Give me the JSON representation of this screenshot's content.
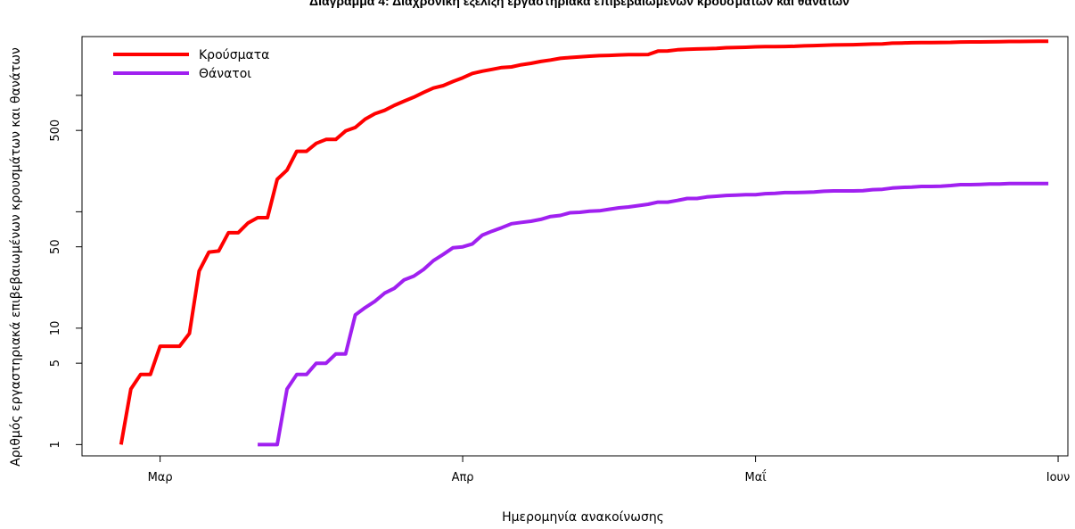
{
  "chart_data": {
    "type": "line",
    "title": "Διάγραμμα 4: Διαχρονική εξέλιξη εργαστηριακά επιβεβαιωμένων κρουσμάτων και θανάτων",
    "xlabel": "Ημερομηνία ανακοίνωσης",
    "ylabel": "Αριθμός εργαστηριακά επιβεβαιωμένων κρουσμάτων και θανάτων",
    "y_scale": "log",
    "ylim": [
      0.8,
      3200
    ],
    "y_ticks": [
      1,
      5,
      10,
      50,
      100,
      500,
      1000
    ],
    "y_tick_labels": [
      "1",
      "5",
      "10",
      "50",
      "",
      "500",
      ""
    ],
    "xlim": [
      "2020-02-22",
      "2020-06-02"
    ],
    "x_ticks": [
      {
        "date": "2020-03-01",
        "label": "Μαρ"
      },
      {
        "date": "2020-04-01",
        "label": "Απρ"
      },
      {
        "date": "2020-05-01",
        "label": "Μαΐ"
      },
      {
        "date": "2020-06-01",
        "label": "Ιουν"
      }
    ],
    "legend_position": "top-left",
    "grid": false,
    "series": [
      {
        "name": "Κρούσματα",
        "color": "#ff0000",
        "points": [
          [
            "2020-02-26",
            1
          ],
          [
            "2020-02-27",
            3
          ],
          [
            "2020-02-28",
            4
          ],
          [
            "2020-02-29",
            4
          ],
          [
            "2020-03-01",
            7
          ],
          [
            "2020-03-02",
            7
          ],
          [
            "2020-03-03",
            7
          ],
          [
            "2020-03-04",
            9
          ],
          [
            "2020-03-05",
            31
          ],
          [
            "2020-03-06",
            45
          ],
          [
            "2020-03-07",
            46
          ],
          [
            "2020-03-08",
            66
          ],
          [
            "2020-03-09",
            66
          ],
          [
            "2020-03-10",
            80
          ],
          [
            "2020-03-11",
            89
          ],
          [
            "2020-03-12",
            89
          ],
          [
            "2020-03-13",
            190
          ],
          [
            "2020-03-14",
            228
          ],
          [
            "2020-03-15",
            331
          ],
          [
            "2020-03-16",
            331
          ],
          [
            "2020-03-17",
            387
          ],
          [
            "2020-03-18",
            418
          ],
          [
            "2020-03-19",
            418
          ],
          [
            "2020-03-20",
            495
          ],
          [
            "2020-03-21",
            530
          ],
          [
            "2020-03-22",
            624
          ],
          [
            "2020-03-23",
            695
          ],
          [
            "2020-03-24",
            743
          ],
          [
            "2020-03-25",
            821
          ],
          [
            "2020-03-26",
            892
          ],
          [
            "2020-03-27",
            966
          ],
          [
            "2020-03-28",
            1061
          ],
          [
            "2020-03-29",
            1156
          ],
          [
            "2020-03-30",
            1212
          ],
          [
            "2020-03-31",
            1314
          ],
          [
            "2020-04-01",
            1415
          ],
          [
            "2020-04-02",
            1544
          ],
          [
            "2020-04-03",
            1613
          ],
          [
            "2020-04-04",
            1673
          ],
          [
            "2020-04-05",
            1735
          ],
          [
            "2020-04-06",
            1755
          ],
          [
            "2020-04-07",
            1832
          ],
          [
            "2020-04-08",
            1884
          ],
          [
            "2020-04-09",
            1955
          ],
          [
            "2020-04-10",
            2011
          ],
          [
            "2020-04-11",
            2081
          ],
          [
            "2020-04-12",
            2114
          ],
          [
            "2020-04-13",
            2145
          ],
          [
            "2020-04-14",
            2170
          ],
          [
            "2020-04-15",
            2192
          ],
          [
            "2020-04-16",
            2207
          ],
          [
            "2020-04-17",
            2224
          ],
          [
            "2020-04-18",
            2235
          ],
          [
            "2020-04-19",
            2235
          ],
          [
            "2020-04-20",
            2245
          ],
          [
            "2020-04-21",
            2401
          ],
          [
            "2020-04-22",
            2408
          ],
          [
            "2020-04-23",
            2463
          ],
          [
            "2020-04-24",
            2490
          ],
          [
            "2020-04-25",
            2506
          ],
          [
            "2020-04-26",
            2517
          ],
          [
            "2020-04-27",
            2534
          ],
          [
            "2020-04-28",
            2566
          ],
          [
            "2020-04-29",
            2576
          ],
          [
            "2020-04-30",
            2591
          ],
          [
            "2020-05-01",
            2612
          ],
          [
            "2020-05-02",
            2620
          ],
          [
            "2020-05-03",
            2626
          ],
          [
            "2020-05-04",
            2632
          ],
          [
            "2020-05-05",
            2642
          ],
          [
            "2020-05-06",
            2663
          ],
          [
            "2020-05-07",
            2678
          ],
          [
            "2020-05-08",
            2691
          ],
          [
            "2020-05-09",
            2710
          ],
          [
            "2020-05-10",
            2716
          ],
          [
            "2020-05-11",
            2726
          ],
          [
            "2020-05-12",
            2744
          ],
          [
            "2020-05-13",
            2760
          ],
          [
            "2020-05-14",
            2770
          ],
          [
            "2020-05-15",
            2810
          ],
          [
            "2020-05-16",
            2819
          ],
          [
            "2020-05-17",
            2834
          ],
          [
            "2020-05-18",
            2836
          ],
          [
            "2020-05-19",
            2840
          ],
          [
            "2020-05-20",
            2850
          ],
          [
            "2020-05-21",
            2853
          ],
          [
            "2020-05-22",
            2873
          ],
          [
            "2020-05-23",
            2876
          ],
          [
            "2020-05-24",
            2878
          ],
          [
            "2020-05-25",
            2882
          ],
          [
            "2020-05-26",
            2892
          ],
          [
            "2020-05-27",
            2903
          ],
          [
            "2020-05-28",
            2906
          ],
          [
            "2020-05-29",
            2909
          ],
          [
            "2020-05-30",
            2915
          ],
          [
            "2020-05-31",
            2917
          ]
        ]
      },
      {
        "name": "Θάνατοι",
        "color": "#a020f0",
        "points": [
          [
            "2020-03-11",
            1
          ],
          [
            "2020-03-12",
            1
          ],
          [
            "2020-03-13",
            1
          ],
          [
            "2020-03-14",
            3
          ],
          [
            "2020-03-15",
            4
          ],
          [
            "2020-03-16",
            4
          ],
          [
            "2020-03-17",
            5
          ],
          [
            "2020-03-18",
            5
          ],
          [
            "2020-03-19",
            6
          ],
          [
            "2020-03-20",
            6
          ],
          [
            "2020-03-21",
            13
          ],
          [
            "2020-03-22",
            15
          ],
          [
            "2020-03-23",
            17
          ],
          [
            "2020-03-24",
            20
          ],
          [
            "2020-03-25",
            22
          ],
          [
            "2020-03-26",
            26
          ],
          [
            "2020-03-27",
            28
          ],
          [
            "2020-03-28",
            32
          ],
          [
            "2020-03-29",
            38
          ],
          [
            "2020-03-30",
            43
          ],
          [
            "2020-03-31",
            49
          ],
          [
            "2020-04-01",
            50
          ],
          [
            "2020-04-02",
            53
          ],
          [
            "2020-04-03",
            63
          ],
          [
            "2020-04-04",
            68
          ],
          [
            "2020-04-05",
            73
          ],
          [
            "2020-04-06",
            79
          ],
          [
            "2020-04-07",
            81
          ],
          [
            "2020-04-08",
            83
          ],
          [
            "2020-04-09",
            86
          ],
          [
            "2020-04-10",
            91
          ],
          [
            "2020-04-11",
            93
          ],
          [
            "2020-04-12",
            98
          ],
          [
            "2020-04-13",
            99
          ],
          [
            "2020-04-14",
            101
          ],
          [
            "2020-04-15",
            102
          ],
          [
            "2020-04-16",
            105
          ],
          [
            "2020-04-17",
            108
          ],
          [
            "2020-04-18",
            110
          ],
          [
            "2020-04-19",
            113
          ],
          [
            "2020-04-20",
            116
          ],
          [
            "2020-04-21",
            121
          ],
          [
            "2020-04-22",
            121
          ],
          [
            "2020-04-23",
            125
          ],
          [
            "2020-04-24",
            130
          ],
          [
            "2020-04-25",
            130
          ],
          [
            "2020-04-26",
            134
          ],
          [
            "2020-04-27",
            136
          ],
          [
            "2020-04-28",
            138
          ],
          [
            "2020-04-29",
            139
          ],
          [
            "2020-04-30",
            140
          ],
          [
            "2020-05-01",
            140
          ],
          [
            "2020-05-02",
            143
          ],
          [
            "2020-05-03",
            144
          ],
          [
            "2020-05-04",
            146
          ],
          [
            "2020-05-05",
            146
          ],
          [
            "2020-05-06",
            147
          ],
          [
            "2020-05-07",
            148
          ],
          [
            "2020-05-08",
            150
          ],
          [
            "2020-05-09",
            151
          ],
          [
            "2020-05-10",
            151
          ],
          [
            "2020-05-11",
            151
          ],
          [
            "2020-05-12",
            152
          ],
          [
            "2020-05-13",
            155
          ],
          [
            "2020-05-14",
            156
          ],
          [
            "2020-05-15",
            160
          ],
          [
            "2020-05-16",
            162
          ],
          [
            "2020-05-17",
            163
          ],
          [
            "2020-05-18",
            165
          ],
          [
            "2020-05-19",
            165
          ],
          [
            "2020-05-20",
            166
          ],
          [
            "2020-05-21",
            168
          ],
          [
            "2020-05-22",
            171
          ],
          [
            "2020-05-23",
            171
          ],
          [
            "2020-05-24",
            172
          ],
          [
            "2020-05-25",
            173
          ],
          [
            "2020-05-26",
            173
          ],
          [
            "2020-05-27",
            175
          ],
          [
            "2020-05-28",
            175
          ],
          [
            "2020-05-29",
            175
          ],
          [
            "2020-05-30",
            175
          ],
          [
            "2020-05-31",
            175
          ]
        ]
      }
    ]
  }
}
